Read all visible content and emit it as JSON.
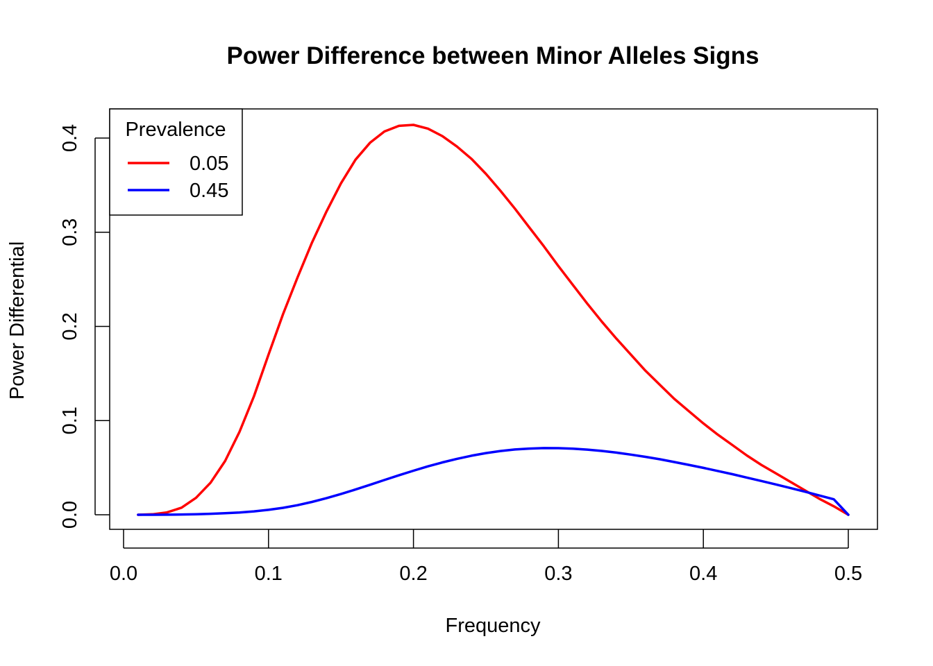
{
  "chart_data": {
    "type": "line",
    "title": "Power Difference between Minor Alleles Signs",
    "xlabel": "Frequency",
    "ylabel": "Power Differential",
    "xlim": [
      0.0,
      0.5
    ],
    "ylim": [
      0.0,
      0.4
    ],
    "xticks": [
      "0.0",
      "0.1",
      "0.2",
      "0.3",
      "0.4",
      "0.5"
    ],
    "yticks": [
      "0.0",
      "0.1",
      "0.2",
      "0.3",
      "0.4"
    ],
    "grid": false,
    "legend": {
      "title": "Prevalence",
      "placement": "top-left",
      "entries": [
        "0.05",
        "0.45"
      ]
    },
    "series": [
      {
        "name": "0.05",
        "color": "#ff0000",
        "x": [
          0.01,
          0.02,
          0.03,
          0.04,
          0.05,
          0.06,
          0.07,
          0.08,
          0.09,
          0.1,
          0.11,
          0.12,
          0.13,
          0.14,
          0.15,
          0.16,
          0.17,
          0.18,
          0.19,
          0.2,
          0.21,
          0.22,
          0.23,
          0.24,
          0.25,
          0.26,
          0.27,
          0.28,
          0.29,
          0.3,
          0.31,
          0.32,
          0.33,
          0.34,
          0.35,
          0.36,
          0.37,
          0.38,
          0.39,
          0.4,
          0.41,
          0.42,
          0.43,
          0.44,
          0.45,
          0.46,
          0.47,
          0.48,
          0.49,
          0.5
        ],
        "values": [
          0.0,
          0.0005,
          0.0025,
          0.0075,
          0.018,
          0.034,
          0.057,
          0.088,
          0.126,
          0.17,
          0.213,
          0.252,
          0.289,
          0.322,
          0.352,
          0.377,
          0.395,
          0.407,
          0.413,
          0.414,
          0.41,
          0.402,
          0.391,
          0.378,
          0.362,
          0.344,
          0.325,
          0.305,
          0.285,
          0.264,
          0.244,
          0.224,
          0.205,
          0.187,
          0.17,
          0.153,
          0.138,
          0.123,
          0.11,
          0.097,
          0.085,
          0.074,
          0.063,
          0.053,
          0.044,
          0.035,
          0.026,
          0.017,
          0.009,
          0.0
        ]
      },
      {
        "name": "0.45",
        "color": "#0000ff",
        "x": [
          0.01,
          0.02,
          0.03,
          0.04,
          0.05,
          0.06,
          0.07,
          0.08,
          0.09,
          0.1,
          0.11,
          0.12,
          0.13,
          0.14,
          0.15,
          0.16,
          0.17,
          0.18,
          0.19,
          0.2,
          0.21,
          0.22,
          0.23,
          0.24,
          0.25,
          0.26,
          0.27,
          0.28,
          0.29,
          0.3,
          0.31,
          0.32,
          0.33,
          0.34,
          0.35,
          0.36,
          0.37,
          0.38,
          0.39,
          0.4,
          0.41,
          0.42,
          0.43,
          0.44,
          0.45,
          0.46,
          0.47,
          0.48,
          0.49,
          0.5
        ],
        "values": [
          0.0,
          0.0,
          0.0001,
          0.0003,
          0.0006,
          0.001,
          0.0016,
          0.0024,
          0.0036,
          0.0052,
          0.0074,
          0.0102,
          0.0136,
          0.0176,
          0.022,
          0.0268,
          0.0318,
          0.0369,
          0.0419,
          0.0468,
          0.0514,
          0.0556,
          0.0594,
          0.0627,
          0.0655,
          0.0677,
          0.0693,
          0.0703,
          0.0708,
          0.0707,
          0.0702,
          0.0692,
          0.0678,
          0.066,
          0.0639,
          0.0615,
          0.0589,
          0.056,
          0.053,
          0.0498,
          0.0465,
          0.0431,
          0.0395,
          0.0359,
          0.0322,
          0.0284,
          0.0245,
          0.0205,
          0.0164,
          0.0
        ]
      }
    ]
  }
}
